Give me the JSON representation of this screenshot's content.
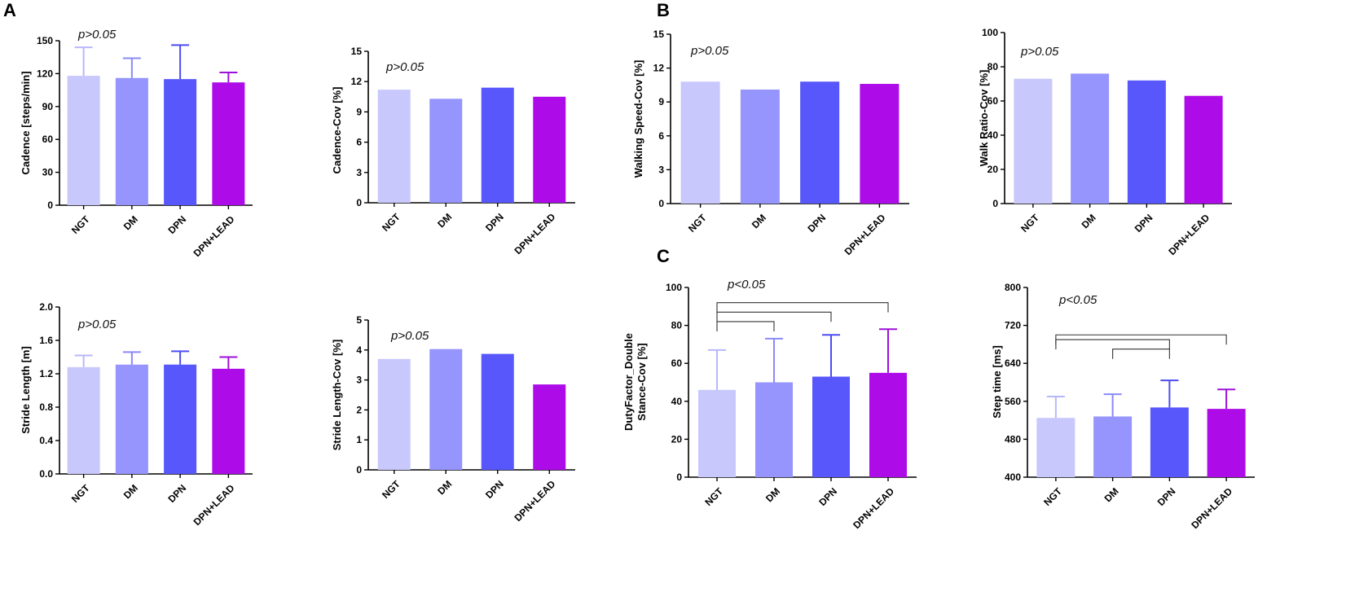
{
  "panel_labels": {
    "a": "A",
    "b": "B",
    "c": "C"
  },
  "colors": {
    "NGT": "#c8c8fd",
    "DM": "#9595fd",
    "DPN": "#5757fb",
    "DPN+LEAD": "#ad0ce9",
    "NGT_err": "#b7b7fb",
    "DM_err": "#8a8af7",
    "DPN_err": "#4c4cf2",
    "DPN+LEAD_err": "#9d10d8"
  },
  "chart_data": [
    {
      "id": "cadence",
      "panel": "A",
      "type": "bar",
      "title": "",
      "xlabel": "",
      "ylabel": "Cadence [steps/min]",
      "categories": [
        "NGT",
        "DM",
        "DPN",
        "DPN+LEAD"
      ],
      "values": [
        118,
        116,
        115,
        112
      ],
      "errors": [
        144,
        134,
        146,
        121
      ],
      "ylim": [
        0,
        150
      ],
      "yticks": [
        "0",
        "30",
        "60",
        "90",
        "120",
        "150"
      ],
      "annotation": "p>0.05",
      "brackets": []
    },
    {
      "id": "cadence_cov",
      "panel": "A",
      "type": "bar",
      "title": "",
      "xlabel": "",
      "ylabel": "Cadence-Cov [%]",
      "categories": [
        "NGT",
        "DM",
        "DPN",
        "DPN+LEAD"
      ],
      "values": [
        11.2,
        10.3,
        11.4,
        10.5
      ],
      "errors": [],
      "ylim": [
        0,
        15
      ],
      "yticks": [
        "0",
        "3",
        "6",
        "9",
        "12",
        "15"
      ],
      "annotation": "p>0.05",
      "brackets": []
    },
    {
      "id": "walking_speed_cov",
      "panel": "B",
      "type": "bar",
      "title": "",
      "xlabel": "",
      "ylabel": "Walking Speed-Cov [%]",
      "categories": [
        "NGT",
        "DM",
        "DPN",
        "DPN+LEAD"
      ],
      "values": [
        10.8,
        10.1,
        10.8,
        10.6
      ],
      "errors": [],
      "ylim": [
        0,
        15
      ],
      "yticks": [
        "0",
        "3",
        "6",
        "9",
        "12",
        "15"
      ],
      "annotation": "p>0.05",
      "brackets": []
    },
    {
      "id": "walk_ratio_cov",
      "panel": "B",
      "type": "bar",
      "title": "",
      "xlabel": "",
      "ylabel": "Walk Ratio-Cov [%]",
      "categories": [
        "NGT",
        "DM",
        "DPN",
        "DPN+LEAD"
      ],
      "values": [
        73,
        76,
        72,
        63
      ],
      "errors": [],
      "ylim": [
        0,
        100
      ],
      "yticks": [
        "0",
        "20",
        "40",
        "60",
        "80",
        "100"
      ],
      "annotation": "p>0.05",
      "brackets": []
    },
    {
      "id": "stride_length",
      "panel": "A",
      "type": "bar",
      "title": "",
      "xlabel": "",
      "ylabel": "Stride Length [m]",
      "categories": [
        "NGT",
        "DM",
        "DPN",
        "DPN+LEAD"
      ],
      "values": [
        1.28,
        1.31,
        1.31,
        1.26
      ],
      "errors": [
        1.42,
        1.46,
        1.47,
        1.4
      ],
      "ylim": [
        0,
        2.0
      ],
      "yticks": [
        "0.0",
        "0.4",
        "0.8",
        "1.2",
        "1.6",
        "2.0"
      ],
      "annotation": "p>0.05",
      "brackets": []
    },
    {
      "id": "stride_length_cov",
      "panel": "A",
      "type": "bar",
      "title": "",
      "xlabel": "",
      "ylabel": "Stride Length-Cov [%]",
      "categories": [
        "NGT",
        "DM",
        "DPN",
        "DPN+LEAD"
      ],
      "values": [
        3.7,
        4.03,
        3.87,
        2.85
      ],
      "errors": [],
      "ylim": [
        0,
        5
      ],
      "yticks": [
        "0",
        "1",
        "2",
        "3",
        "4",
        "5"
      ],
      "annotation": "p>0.05",
      "brackets": []
    },
    {
      "id": "duty_factor",
      "panel": "C",
      "type": "bar",
      "title": "",
      "xlabel": "",
      "ylabel": "DutyFactor_Double Stance-Cov [%]",
      "categories": [
        "NGT",
        "DM",
        "DPN",
        "DPN+LEAD"
      ],
      "values": [
        46,
        50,
        53,
        55
      ],
      "errors": [
        67,
        73,
        75,
        78
      ],
      "ylim": [
        0,
        100
      ],
      "yticks": [
        "0",
        "20",
        "40",
        "60",
        "80",
        "100"
      ],
      "annotation": "p<0.05",
      "brackets": [
        {
          "from": 0,
          "to": 3,
          "level": 92
        },
        {
          "from": 0,
          "to": 2,
          "level": 87
        },
        {
          "from": 0,
          "to": 1,
          "level": 82
        }
      ]
    },
    {
      "id": "step_time",
      "panel": "C",
      "type": "bar",
      "title": "",
      "xlabel": "",
      "ylabel": "Step time [ms]",
      "categories": [
        "NGT",
        "DM",
        "DPN",
        "DPN+LEAD"
      ],
      "values": [
        525,
        528,
        547,
        544
      ],
      "errors": [
        570,
        575,
        604,
        585
      ],
      "ylim": [
        400,
        800
      ],
      "yticks": [
        "400",
        "480",
        "560",
        "640",
        "720",
        "800"
      ],
      "annotation": "p<0.05",
      "brackets": [
        {
          "from": 0,
          "to": 3,
          "level": 700
        },
        {
          "from": 0,
          "to": 2,
          "level": 690
        },
        {
          "from": 1,
          "to": 2,
          "level": 670
        }
      ]
    }
  ]
}
